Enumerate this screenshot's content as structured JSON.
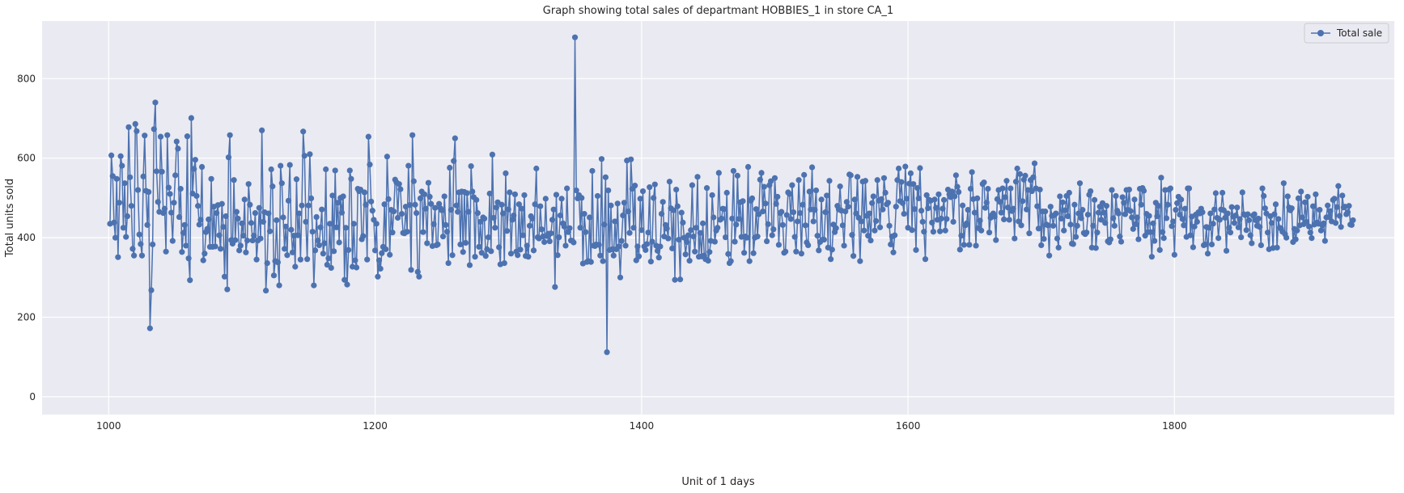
{
  "chart_data": {
    "type": "line",
    "title": "Graph showing total sales of departmant HOBBIES_1 in store CA_1",
    "xlabel": "Unit of 1 days",
    "ylabel": "Total units sold",
    "xlim": [
      950,
      1965
    ],
    "ylim": [
      -45,
      945
    ],
    "x_ticks": [
      1000,
      1200,
      1400,
      1600,
      1800
    ],
    "y_ticks": [
      0,
      200,
      400,
      600,
      800
    ],
    "grid": true,
    "legend": "top-right",
    "colors": {
      "background": "#eaeaf2",
      "grid": "#ffffff",
      "series": "#4c72b0"
    },
    "series": [
      {
        "name": "Total sale",
        "x_start": 1001,
        "x_step": 1,
        "values": [
          435,
          607,
          555,
          438,
          400,
          548,
          351,
          488,
          605,
          581,
          425,
          537,
          402,
          454,
          678,
          552,
          480,
          372,
          355,
          686,
          668,
          520,
          408,
          384,
          355,
          554,
          657,
          518,
          432,
          515,
          172,
          268,
          383,
          673,
          740,
          567,
          490,
          465,
          654,
          566,
          462,
          473,
          365,
          658,
          526,
          510,
          463,
          392,
          488,
          557,
          642,
          624,
          452,
          523,
          364,
          412,
          432,
          380,
          655,
          348,
          293,
          701,
          511,
          573,
          596,
          505,
          480,
          433,
          445,
          578,
          343,
          360,
          414,
          422,
          446,
          377,
          548,
          377,
          478,
          378,
          462,
          482,
          406,
          372,
          485,
          427,
          302,
          454,
          270,
          602,
          658,
          394,
          385,
          545,
          394,
          465,
          448,
          368,
          380,
          436,
          405,
          496,
          363,
          393,
          535,
          483,
          437,
          393,
          405,
          462,
          345,
          393,
          475,
          398,
          670,
          440,
          464,
          267,
          336,
          461,
          416,
          572,
          529,
          305,
          341,
          444,
          338,
          280,
          581,
          537,
          451,
          372,
          428,
          356,
          493,
          583,
          420,
          363,
          405,
          327,
          547,
          406,
          461,
          345,
          481,
          667,
          606,
          440,
          346,
          481,
          610,
          499,
          415,
          280,
          368,
          452,
          393,
          381,
          426,
          471,
          360,
          386,
          572,
          332,
          348,
          435,
          324,
          506,
          366,
          569,
          426,
          488,
          388,
          500,
          463,
          504,
          294,
          425,
          282,
          369,
          569,
          548,
          327,
          435,
          343,
          325,
          523,
          517,
          521,
          396,
          404,
          514,
          483,
          345,
          654,
          584,
          491,
          468,
          445,
          368,
          435,
          302,
          343,
          322,
          361,
          377,
          484,
          371,
          604,
          497,
          357,
          470,
          413,
          466,
          546,
          539,
          450,
          535,
          522,
          460,
          412,
          411,
          478,
          415,
          581,
          482,
          319,
          658,
          542,
          483,
          462,
          314,
          302,
          499,
          516,
          414,
          509,
          473,
          386,
          538,
          503,
          485,
          379,
          434,
          475,
          381,
          383,
          485,
          474,
          469,
          403,
          504,
          432,
          415,
          336,
          576,
          470,
          356,
          593,
          650,
          481,
          465,
          514,
          383,
          516,
          364,
          515,
          387,
          512,
          465,
          331,
          580,
          516,
          502,
          352,
          495,
          462,
          377,
          440,
          362,
          451,
          448,
          354,
          371,
          401,
          511,
          366,
          609,
          450,
          425,
          476,
          489,
          376,
          333,
          483,
          461,
          336,
          562,
          417,
          471,
          514,
          360,
          445,
          456,
          509,
          365,
          356,
          484,
          370,
          473,
          406,
          507,
          354,
          380,
          352,
          430,
          454,
          448,
          368,
          484,
          574,
          401,
          398,
          479,
          421,
          403,
          389,
          498,
          404,
          410,
          391,
          411,
          445,
          471,
          276,
          508,
          356,
          401,
          456,
          498,
          436,
          428,
          380,
          524,
          414,
          424,
          393,
          392,
          388,
          904,
          519,
          499,
          507,
          425,
          500,
          335,
          460,
          414,
          339,
          341,
          451,
          339,
          568,
          380,
          379,
          383,
          505,
          382,
          355,
          598,
          341,
          433,
          552,
          112,
          519,
          369,
          481,
          371,
          355,
          441,
          371,
          486,
          378,
          300,
          392,
          456,
          488,
          380,
          594,
          466,
          412,
          597,
          523,
          425,
          531,
          343,
          378,
          353,
          498,
          419,
          517,
          378,
          369,
          384,
          413,
          527,
          340,
          390,
          500,
          534,
          380,
          367,
          350,
          378,
          460,
          490,
          403,
          432,
          423,
          398,
          541,
          474,
          373,
          469,
          294,
          521,
          479,
          395,
          295,
          463,
          438,
          400,
          358,
          389,
          406,
          342,
          419,
          532,
          403,
          365,
          425,
          553,
          352,
          412,
          353,
          436,
          355,
          346,
          525,
          342,
          364,
          392,
          507,
          451,
          390,
          418,
          425,
          563,
          445,
          448,
          473,
          472,
          401,
          513,
          359,
          336,
          341,
          448,
          568,
          390,
          433,
          556,
          447,
          489,
          402,
          492,
          362,
          403,
          400,
          578,
          341,
          493,
          499,
          361,
          400,
          472,
          403,
          459,
          546,
          563,
          466,
          528,
          486,
          391,
          434,
          532,
          542,
          406,
          421,
          550,
          485,
          503,
          382,
          462,
          465,
          432,
          362,
          365,
          457,
          514,
          510,
          447,
          532,
          464,
          402,
          365,
          441,
          545,
          462,
          360,
          483,
          558,
          431,
          388,
          381,
          516,
          471,
          577,
          441,
          470,
          519,
          405,
          368,
          389,
          496,
          395,
          395,
          464,
          506,
          375,
          543,
          346,
          370,
          433,
          414,
          424,
          480,
          471,
          529,
          468,
          431,
          380,
          466,
          490,
          478,
          559,
          557,
          407,
          354,
          496,
          461,
          553,
          450,
          341,
          441,
          541,
          418,
          543,
          455,
          405,
          461,
          393,
          487,
          504,
          418,
          442,
          545,
          493,
          426,
          497,
          471,
          550,
          513,
          484,
          488,
          430,
          383,
          403,
          363,
          406,
          478,
          545,
          574,
          492,
          540,
          487,
          460,
          579,
          498,
          425,
          536,
          562,
          419,
          535,
          472,
          369,
          525,
          499,
          575,
          468,
          440,
          415,
          346,
          507,
          474,
          495,
          493,
          438,
          415,
          496,
          475,
          445,
          509,
          416,
          448,
          473,
          495,
          418,
          447,
          521,
          509,
          502,
          516,
          440,
          504,
          557,
          528,
          515,
          370,
          405,
          481,
          382,
          431,
          436,
          470,
          382,
          523,
          565,
          497,
          463,
          380,
          499,
          424,
          443,
          418,
          535,
          539,
          475,
          488,
          523,
          413,
          450,
          457,
          461,
          453,
          394,
          497,
          520,
          490,
          463,
          524,
          446,
          502,
          543,
          476,
          445,
          524,
          467,
          473,
          398,
          541,
          574,
          441,
          560,
          431,
          492,
          546,
          556,
          471,
          520,
          411,
          545,
          517,
          552,
          587,
          524,
          479,
          423,
          521,
          381,
          466,
          397,
          466,
          433,
          431,
          355,
          478,
          455,
          430,
          457,
          461,
          398,
          375,
          504,
          448,
          489,
          418,
          469,
          505,
          454,
          513,
          433,
          385,
          384,
          483,
          402,
          430,
          461,
          537,
          449,
          470,
          412,
          409,
          413,
          458,
          508,
          517,
          375,
          430,
          495,
          374,
          413,
          463,
          478,
          445,
          487,
          463,
          437,
          480,
          391,
          388,
          396,
          520,
          449,
          430,
          505,
          468,
          461,
          403,
          390,
          502,
          488,
          459,
          520,
          470,
          521,
          467,
          451,
          422,
          496,
          434,
          451,
          396,
          523,
          483,
          525,
          518,
          405,
          460,
          414,
          455,
          414,
          352,
          436,
          392,
          488,
          454,
          480,
          369,
          551,
          414,
          399,
          520,
          449,
          483,
          521,
          524,
          429,
          441,
          357,
          470,
          487,
          503,
          458,
          496,
          447,
          431,
          473,
          402,
          524,
          524,
          406,
          453,
          376,
          428,
          458,
          440,
          464,
          461,
          473,
          464,
          381,
          383,
          427,
          360,
          425,
          461,
          383,
          435,
          471,
          512,
          450,
          399,
          445,
          471,
          513,
          469,
          450,
          367,
          461,
          425,
          413,
          477,
          453,
          437,
          456,
          476,
          426,
          447,
          401,
          514,
          459,
          457,
          419,
          459,
          444,
          406,
          386,
          456,
          459,
          444,
          430,
          448,
          427,
          381,
          524,
          505,
          474,
          461,
          413,
          371,
          454,
          437,
          374,
          459,
          484,
          375,
          447,
          425,
          423,
          415,
          537,
          409,
          400,
          504,
          476,
          469,
          474,
          389,
          422,
          396,
          418,
          499,
          431,
          516,
          451,
          434,
          489,
          440,
          503,
          428,
          413,
          399,
          479,
          433,
          509,
          438,
          435,
          470,
          418,
          431,
          436,
          392,
          451,
          481,
          452,
          467,
          441,
          495,
          498,
          437,
          477,
          530,
          455,
          427,
          506,
          476,
          478,
          459,
          464,
          480,
          433,
          432,
          444
        ]
      }
    ]
  }
}
